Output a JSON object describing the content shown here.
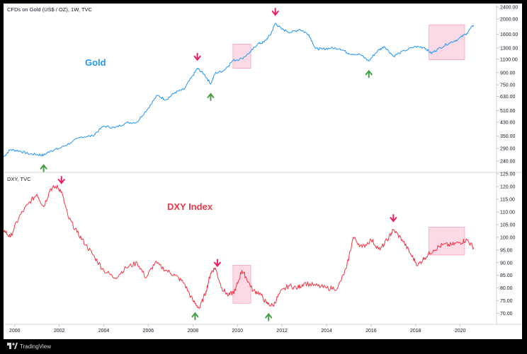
{
  "footer": {
    "brand": "TradingView"
  },
  "chart_data": [
    {
      "type": "line",
      "title": "CFDs on Gold (US$ / OZ), 1W, TVC",
      "label": "Gold",
      "color": "#2196f3",
      "label_color": "#2196f3",
      "y_scale": "log",
      "ylim": [
        205,
        2500
      ],
      "yticks": [
        "240.00",
        "290.00",
        "350.00",
        "430.00",
        "510.00",
        "630.00",
        "750.00",
        "900.00",
        "1100.00",
        "1300.00",
        "1600.00",
        "2000.00",
        "2400.00"
      ],
      "series": [
        {
          "x": [
            1999.5,
            1999.8,
            2000.2,
            2000.6,
            2001.0,
            2001.3,
            2001.6,
            2002.0,
            2002.5,
            2003.0,
            2003.5,
            2004.0,
            2004.5,
            2005.0,
            2005.5,
            2006.0,
            2006.4,
            2006.8,
            2007.2,
            2007.6,
            2008.0,
            2008.2,
            2008.5,
            2008.8,
            2009.0,
            2009.4,
            2009.8,
            2010.2,
            2010.6,
            2010.9,
            2011.2,
            2011.5,
            2011.7,
            2012.0,
            2012.4,
            2012.8,
            2013.2,
            2013.5,
            2013.8,
            2014.2,
            2014.6,
            2015.0,
            2015.5,
            2015.9,
            2016.3,
            2016.6,
            2017.0,
            2017.5,
            2018.0,
            2018.4,
            2018.7,
            2019.0,
            2019.5,
            2019.9,
            2020.3,
            2020.6
          ],
          "values": [
            255,
            285,
            280,
            268,
            265,
            262,
            280,
            290,
            315,
            345,
            350,
            405,
            395,
            425,
            430,
            530,
            640,
            600,
            670,
            700,
            860,
            960,
            880,
            760,
            890,
            930,
            1080,
            1110,
            1230,
            1380,
            1420,
            1600,
            1880,
            1720,
            1640,
            1720,
            1590,
            1290,
            1280,
            1300,
            1290,
            1200,
            1180,
            1070,
            1250,
            1330,
            1150,
            1250,
            1330,
            1310,
            1200,
            1280,
            1400,
            1480,
            1620,
            1830
          ]
        }
      ],
      "annotations": {
        "down_arrows_at": [
          2008.2,
          2011.7
        ],
        "up_arrows_at": [
          2001.3,
          2008.8,
          2015.9
        ],
        "highlight_boxes": [
          {
            "x": [
              2009.8,
              2010.6
            ],
            "y": [
              960,
              1380
            ]
          },
          {
            "x": [
              2018.6,
              2020.2
            ],
            "y": [
              1090,
              1840
            ]
          }
        ]
      }
    },
    {
      "type": "line",
      "title": "DXY, TVC",
      "label": "DXY Index",
      "color": "#f23645",
      "label_color": "#f23645",
      "ylim": [
        66,
        125
      ],
      "yticks": [
        "70.00",
        "75.00",
        "80.00",
        "85.00",
        "90.00",
        "95.00",
        "100.00",
        "105.00",
        "110.00",
        "115.00",
        "120.00",
        "125.00"
      ],
      "series": [
        {
          "x": [
            1999.5,
            1999.8,
            2000.2,
            2000.6,
            2001.0,
            2001.3,
            2001.6,
            2001.9,
            2002.1,
            2002.4,
            2002.8,
            2003.2,
            2003.6,
            2004.0,
            2004.5,
            2005.0,
            2005.5,
            2005.9,
            2006.3,
            2006.8,
            2007.2,
            2007.6,
            2008.0,
            2008.3,
            2008.6,
            2008.8,
            2009.0,
            2009.3,
            2009.6,
            2009.9,
            2010.2,
            2010.4,
            2010.7,
            2011.0,
            2011.3,
            2011.6,
            2011.9,
            2012.3,
            2012.7,
            2013.0,
            2013.5,
            2014.0,
            2014.5,
            2014.9,
            2015.2,
            2015.6,
            2016.0,
            2016.4,
            2016.8,
            2017.0,
            2017.4,
            2017.8,
            2018.1,
            2018.4,
            2018.8,
            2019.2,
            2019.6,
            2020.0,
            2020.3,
            2020.6
          ],
          "values": [
            103,
            100,
            108,
            113,
            117,
            112,
            119,
            120,
            118,
            108,
            102,
            97,
            92,
            87,
            84,
            88,
            90,
            84,
            90,
            87,
            85,
            82,
            75,
            72,
            79,
            86,
            88,
            80,
            77,
            79,
            87,
            84,
            79,
            78,
            74,
            73,
            78,
            81,
            80,
            82,
            81,
            80,
            80,
            88,
            100,
            96,
            99,
            95,
            100,
            103,
            99,
            93,
            89,
            92,
            95,
            97,
            97,
            98,
            99,
            96
          ]
        }
      ],
      "annotations": {
        "down_arrows_at": [
          2002.1,
          2009.1,
          2017.0
        ],
        "up_arrows_at": [
          2008.1,
          2011.4
        ],
        "highlight_boxes": [
          {
            "x": [
              2009.8,
              2010.6
            ],
            "y": [
              74,
              89
            ]
          },
          {
            "x": [
              2018.6,
              2020.2
            ],
            "y": [
              93,
              104
            ]
          }
        ]
      }
    }
  ],
  "x_axis": {
    "ticks": [
      "2000",
      "2002",
      "2004",
      "2006",
      "2008",
      "2010",
      "2012",
      "2014",
      "2016",
      "2018",
      "2020"
    ],
    "range": [
      1999.5,
      2021.6
    ]
  },
  "colors": {
    "arrow_down": "#e91e63",
    "arrow_up": "#43a047",
    "highlight": "#f8bbd0"
  }
}
